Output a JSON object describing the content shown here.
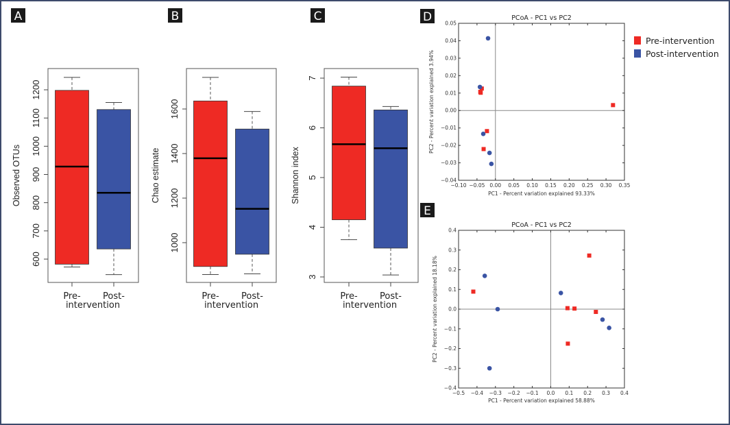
{
  "colors": {
    "pre": "#ee2a24",
    "post": "#3a54a4",
    "border": "#3d4a6b",
    "label_bg": "#1a1a1a"
  },
  "legend": {
    "items": [
      {
        "name": "Pre-intervention",
        "color": "#ee2a24"
      },
      {
        "name": "Post-intervention",
        "color": "#3a54a4"
      }
    ],
    "placement": "right of panel D"
  },
  "chart_data": [
    {
      "panel": "A",
      "type": "boxplot",
      "ylabel": "Observed OTUs",
      "xlabel": "intervention",
      "categories": [
        "Pre-",
        "Post-"
      ],
      "category_line2": "intervention",
      "yticks": [
        600,
        700,
        800,
        900,
        1000,
        1100,
        1200
      ],
      "ylim": [
        530,
        1270
      ],
      "series": [
        {
          "name": "Pre-intervention",
          "min": 572,
          "q1": 582,
          "median": 928,
          "q3": 1198,
          "max": 1244
        },
        {
          "name": "Post-intervention",
          "min": 545,
          "q1": 636,
          "median": 835,
          "q3": 1130,
          "max": 1155
        }
      ]
    },
    {
      "panel": "B",
      "type": "boxplot",
      "ylabel": "Chao estimate",
      "xlabel": "intervention",
      "categories": [
        "Pre-",
        "Post-"
      ],
      "category_line2": "intervention",
      "yticks": [
        1000,
        1200,
        1400,
        1600
      ],
      "ylim": [
        830,
        1770
      ],
      "series": [
        {
          "name": "Pre-intervention",
          "min": 857,
          "q1": 893,
          "median": 1379,
          "q3": 1636,
          "max": 1742
        },
        {
          "name": "Post-intervention",
          "min": 860,
          "q1": 948,
          "median": 1152,
          "q3": 1510,
          "max": 1589
        }
      ]
    },
    {
      "panel": "C",
      "type": "boxplot",
      "ylabel": "Shannon index",
      "xlabel": "intervention",
      "categories": [
        "Pre-",
        "Post-"
      ],
      "category_line2": "intervention",
      "yticks": [
        3,
        4,
        5,
        6,
        7
      ],
      "ylim": [
        2.88,
        7.15
      ],
      "series": [
        {
          "name": "Pre-intervention",
          "min": 3.75,
          "q1": 4.15,
          "median": 5.67,
          "q3": 6.84,
          "max": 7.02
        },
        {
          "name": "Post-intervention",
          "min": 3.04,
          "q1": 3.58,
          "median": 5.59,
          "q3": 6.36,
          "max": 6.43
        }
      ]
    },
    {
      "panel": "D",
      "type": "scatter",
      "title": "PCoA - PC1 vs PC2",
      "xlabel": "PC1 - Percent variation explained 93.33%",
      "ylabel": "PC2 - Percent variation explained 3.94%",
      "xlim": [
        -0.1,
        0.35
      ],
      "ylim": [
        -0.04,
        0.05
      ],
      "xticks": [
        "-0.10",
        "-0.05",
        "0.00",
        "0.05",
        "0.10",
        "0.15",
        "0.20",
        "0.25",
        "0.30",
        "0.35"
      ],
      "yticks": [
        "-0.04",
        "-0.03",
        "-0.02",
        "-0.01",
        "0.00",
        "0.01",
        "0.02",
        "0.03",
        "0.04",
        "0.05"
      ],
      "zero_lines": true,
      "series": [
        {
          "name": "Pre-intervention",
          "marker": "square",
          "points": [
            [
              -0.037,
              0.0126
            ],
            [
              -0.041,
              0.0107
            ],
            [
              -0.04,
              0.0102
            ],
            [
              0.319,
              0.0031
            ],
            [
              -0.023,
              -0.0118
            ],
            [
              -0.032,
              -0.0221
            ]
          ]
        },
        {
          "name": "Post-intervention",
          "marker": "circle",
          "points": [
            [
              -0.02,
              0.0414
            ],
            [
              -0.042,
              0.0135
            ],
            [
              -0.033,
              -0.0134
            ],
            [
              -0.016,
              -0.0243
            ],
            [
              -0.011,
              -0.0306
            ]
          ]
        }
      ]
    },
    {
      "panel": "E",
      "type": "scatter",
      "title": "PCoA - PC1 vs PC2",
      "xlabel": "PC1 - Percent variation explained 58.88%",
      "ylabel": "PC2 - Percent variation explained 18.18%",
      "xlim": [
        -0.5,
        0.4
      ],
      "ylim": [
        -0.4,
        0.4
      ],
      "xticks": [
        "-0.5",
        "-0.4",
        "-0.3",
        "-0.2",
        "-0.1",
        "0.0",
        "0.1",
        "0.2",
        "0.3",
        "0.4"
      ],
      "yticks": [
        "-0.4",
        "-0.3",
        "-0.2",
        "-0.1",
        "0.0",
        "0.1",
        "0.2",
        "0.3",
        "0.4"
      ],
      "zero_lines": true,
      "series": [
        {
          "name": "Pre-intervention",
          "marker": "square",
          "points": [
            [
              -0.42,
              0.089
            ],
            [
              0.209,
              0.272
            ],
            [
              0.091,
              0.005
            ],
            [
              0.129,
              0.003
            ],
            [
              0.245,
              -0.014
            ],
            [
              0.093,
              -0.175
            ]
          ]
        },
        {
          "name": "Post-intervention",
          "marker": "circle",
          "points": [
            [
              -0.358,
              0.169
            ],
            [
              -0.288,
              0.0
            ],
            [
              -0.332,
              -0.3
            ],
            [
              0.055,
              0.082
            ],
            [
              0.281,
              -0.053
            ],
            [
              0.317,
              -0.095
            ]
          ]
        }
      ]
    }
  ]
}
